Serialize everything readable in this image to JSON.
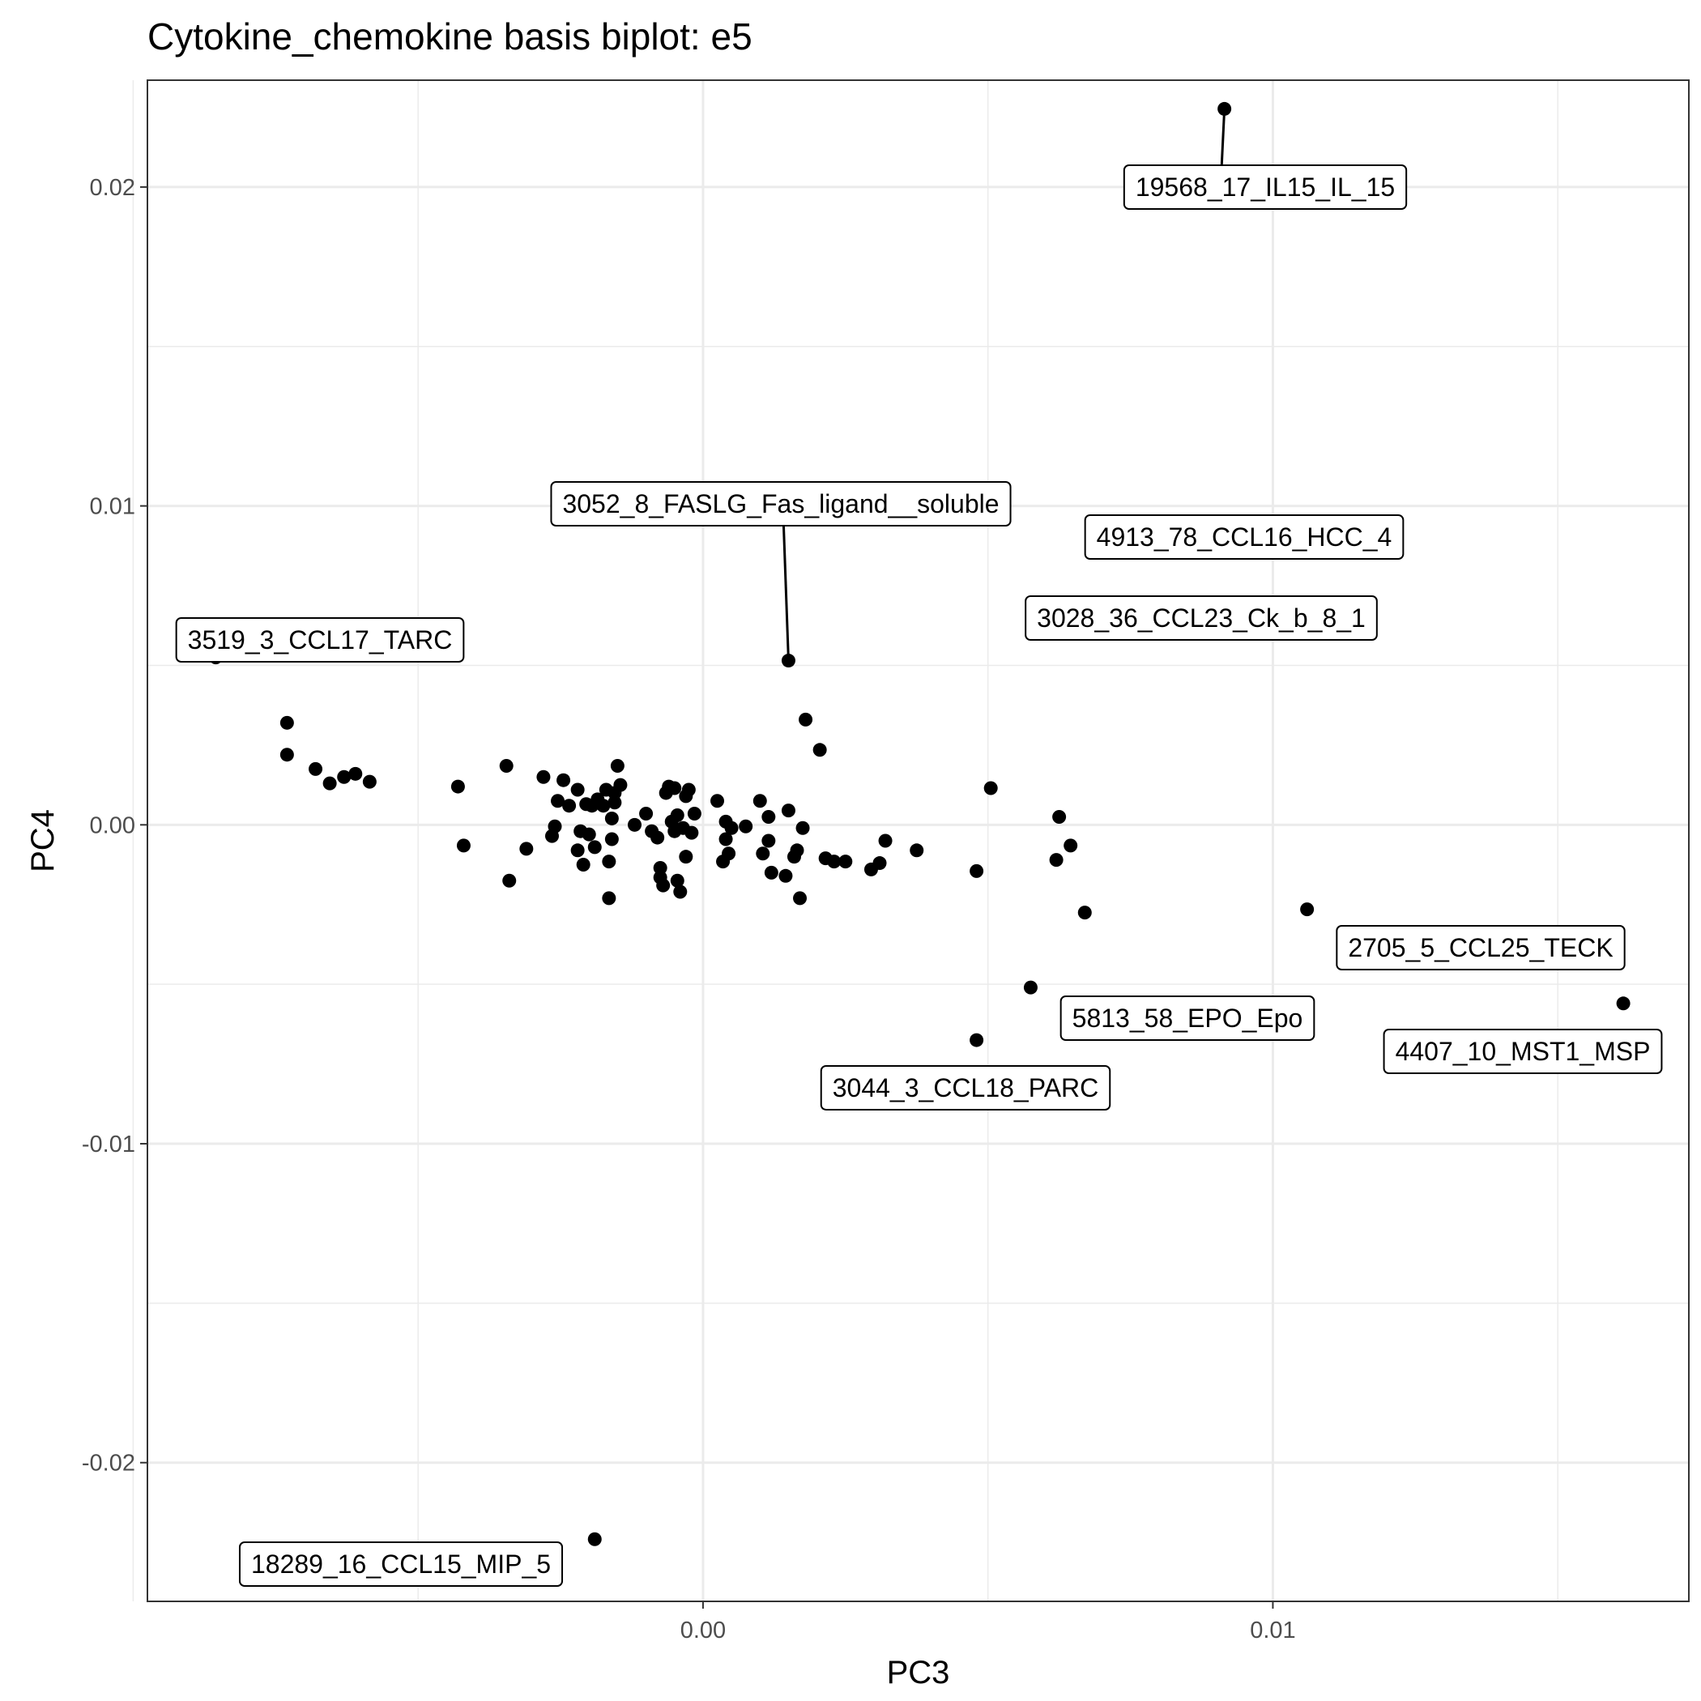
{
  "chart_data": {
    "type": "scatter",
    "title": "Cytokine_chemokine basis biplot: e5",
    "xlabel": "PC3",
    "ylabel": "PC4",
    "xlim": [
      -0.00975,
      0.0173
    ],
    "ylim": [
      -0.02435,
      0.02335
    ],
    "xticks": [
      {
        "value": 0.0,
        "label": "0.00"
      },
      {
        "value": 0.01,
        "label": "0.01"
      }
    ],
    "yticks": [
      {
        "value": 0.02,
        "label": "0.02"
      },
      {
        "value": 0.01,
        "label": "0.01"
      },
      {
        "value": 0.0,
        "label": "0.00"
      },
      {
        "value": -0.01,
        "label": "-0.01"
      },
      {
        "value": -0.02,
        "label": "-0.02"
      }
    ],
    "grid": true,
    "labeled_points": [
      {
        "label": "19568_17_IL15_IL_15",
        "x": 0.00915,
        "y": 0.02245
      },
      {
        "label": "3052_8_FASLG_Fas_ligand__soluble",
        "x": 0.0015,
        "y": 0.00515
      },
      {
        "label": "4913_78_CCL16_HCC_4",
        "x": 0.00795,
        "y": 0.0086
      },
      {
        "label": "3028_36_CCL23_Ck_b_8_1",
        "x": 0.0072,
        "y": 0.006
      },
      {
        "label": "3519_3_CCL17_TARC",
        "x": -0.00855,
        "y": 0.00525
      },
      {
        "label": "2705_5_CCL25_TECK",
        "x": 0.0106,
        "y": -0.00265
      },
      {
        "label": "5813_58_EPO_Epo",
        "x": 0.00575,
        "y": -0.0051
      },
      {
        "label": "4407_10_MST1_MSP",
        "x": 0.01615,
        "y": -0.0056
      },
      {
        "label": "3044_3_CCL18_PARC",
        "x": 0.0048,
        "y": -0.00675
      },
      {
        "label": "18289_16_CCL15_MIP_5",
        "x": -0.0019,
        "y": -0.0224
      }
    ],
    "points": [
      [
        -0.0073,
        0.0032
      ],
      [
        -0.0073,
        0.0022
      ],
      [
        -0.0068,
        0.00175
      ],
      [
        -0.00655,
        0.0013
      ],
      [
        -0.0063,
        0.0015
      ],
      [
        -0.0061,
        0.0016
      ],
      [
        -0.00585,
        0.00135
      ],
      [
        -0.0043,
        0.0012
      ],
      [
        -0.0042,
        -0.00065
      ],
      [
        -0.00345,
        0.00185
      ],
      [
        -0.0034,
        -0.00175
      ],
      [
        -0.0031,
        -0.00075
      ],
      [
        -0.0028,
        0.0015
      ],
      [
        -0.00265,
        -0.00035
      ],
      [
        -0.0026,
        -5e-05
      ],
      [
        -0.00255,
        0.00075
      ],
      [
        -0.00245,
        0.0014
      ],
      [
        -0.00235,
        0.0006
      ],
      [
        -0.0022,
        0.0011
      ],
      [
        -0.0022,
        -0.0008
      ],
      [
        -0.00215,
        -0.0002
      ],
      [
        -0.0021,
        -0.00125
      ],
      [
        -0.00205,
        0.00065
      ],
      [
        -0.002,
        -0.0003
      ],
      [
        -0.00195,
        0.0006
      ],
      [
        -0.0019,
        -0.0007
      ],
      [
        -0.00185,
        0.0008
      ],
      [
        -0.00175,
        0.0006
      ],
      [
        -0.0017,
        0.0011
      ],
      [
        -0.00165,
        -0.0023
      ],
      [
        -0.00165,
        -0.00115
      ],
      [
        -0.0016,
        0.0002
      ],
      [
        -0.0016,
        -0.00045
      ],
      [
        -0.00155,
        0.001
      ],
      [
        -0.00155,
        0.0007
      ],
      [
        -0.0015,
        0.00185
      ],
      [
        -0.00145,
        0.00125
      ],
      [
        -0.0012,
        0.0
      ],
      [
        -0.001,
        0.00035
      ],
      [
        -0.0009,
        -0.0002
      ],
      [
        -0.0008,
        -0.0004
      ],
      [
        -0.00075,
        -0.00135
      ],
      [
        -0.00075,
        -0.00165
      ],
      [
        -0.0007,
        -0.0019
      ],
      [
        -0.00065,
        0.001
      ],
      [
        -0.0006,
        0.0012
      ],
      [
        -0.00055,
        0.0001
      ],
      [
        -0.0005,
        -0.0002
      ],
      [
        -0.0005,
        0.00115
      ],
      [
        -0.00045,
        0.0003
      ],
      [
        -0.00045,
        -0.00175
      ],
      [
        -0.0004,
        -0.0021
      ],
      [
        -0.00035,
        -0.0001
      ],
      [
        -0.0003,
        0.0009
      ],
      [
        -0.0003,
        -0.001
      ],
      [
        -0.00025,
        0.0011
      ],
      [
        -0.0002,
        -0.00025
      ],
      [
        -0.00015,
        0.00035
      ],
      [
        0.00025,
        0.00075
      ],
      [
        0.00035,
        -0.00115
      ],
      [
        0.0004,
        0.0001
      ],
      [
        0.0004,
        -0.00045
      ],
      [
        0.00045,
        -0.0009
      ],
      [
        0.0005,
        -0.0001
      ],
      [
        0.00075,
        -5e-05
      ],
      [
        0.001,
        0.00075
      ],
      [
        0.00105,
        -0.0009
      ],
      [
        0.00115,
        0.00025
      ],
      [
        0.00115,
        -0.0005
      ],
      [
        0.0012,
        -0.0015
      ],
      [
        0.00145,
        -0.0016
      ],
      [
        0.0015,
        0.00045
      ],
      [
        0.0016,
        -0.001
      ],
      [
        0.00165,
        -0.0008
      ],
      [
        0.0017,
        -0.0023
      ],
      [
        0.00175,
        -0.0001
      ],
      [
        0.0018,
        0.0033
      ],
      [
        0.00205,
        0.00235
      ],
      [
        0.00215,
        -0.00105
      ],
      [
        0.0023,
        -0.00115
      ],
      [
        0.0025,
        -0.00115
      ],
      [
        0.00295,
        -0.0014
      ],
      [
        0.0031,
        -0.0012
      ],
      [
        0.0032,
        -0.0005
      ],
      [
        0.00375,
        -0.0008
      ],
      [
        0.0048,
        -0.00145
      ],
      [
        0.00505,
        0.00115
      ],
      [
        0.0062,
        -0.0011
      ],
      [
        0.00625,
        0.00025
      ],
      [
        0.00645,
        -0.00065
      ],
      [
        0.0067,
        -0.00275
      ]
    ]
  }
}
